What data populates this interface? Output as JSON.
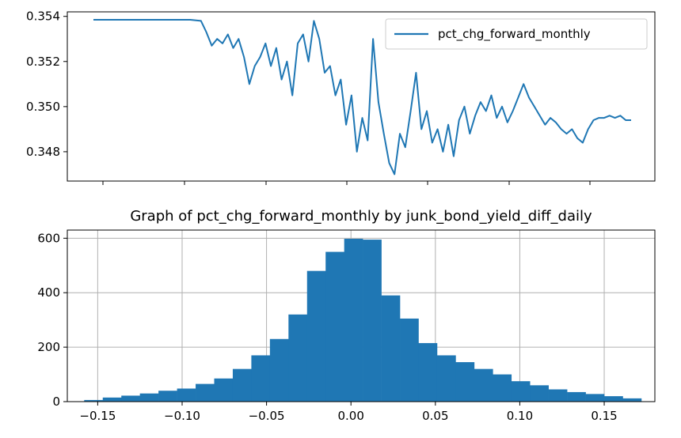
{
  "chart_data": [
    {
      "type": "line",
      "title": "",
      "xlabel": "",
      "ylabel": "",
      "ylim": [
        0.3467,
        0.3542
      ],
      "yticks": [
        0.348,
        0.35,
        0.352,
        0.354
      ],
      "ytick_labels": [
        "0.348",
        "0.350",
        "0.352",
        "0.354"
      ],
      "xtick_labels_visible": false,
      "grid": false,
      "legend_position": "upper right",
      "series": [
        {
          "name": "pct_chg_forward_monthly",
          "color": "#1f77b4",
          "points": [
            [
              0,
              0.35385
            ],
            [
              0.1,
              0.35385
            ],
            [
              0.18,
              0.35385
            ],
            [
              0.2,
              0.3538
            ],
            [
              0.21,
              0.3533
            ],
            [
              0.22,
              0.3527
            ],
            [
              0.23,
              0.353
            ],
            [
              0.24,
              0.3528
            ],
            [
              0.25,
              0.3532
            ],
            [
              0.26,
              0.3526
            ],
            [
              0.27,
              0.353
            ],
            [
              0.28,
              0.3522
            ],
            [
              0.29,
              0.351
            ],
            [
              0.3,
              0.3518
            ],
            [
              0.31,
              0.3522
            ],
            [
              0.32,
              0.3528
            ],
            [
              0.33,
              0.3518
            ],
            [
              0.34,
              0.3526
            ],
            [
              0.35,
              0.3512
            ],
            [
              0.36,
              0.352
            ],
            [
              0.37,
              0.3505
            ],
            [
              0.38,
              0.3528
            ],
            [
              0.39,
              0.3532
            ],
            [
              0.4,
              0.352
            ],
            [
              0.41,
              0.3538
            ],
            [
              0.42,
              0.353
            ],
            [
              0.43,
              0.3515
            ],
            [
              0.44,
              0.3518
            ],
            [
              0.45,
              0.3505
            ],
            [
              0.46,
              0.3512
            ],
            [
              0.47,
              0.3492
            ],
            [
              0.48,
              0.3505
            ],
            [
              0.49,
              0.348
            ],
            [
              0.5,
              0.3495
            ],
            [
              0.51,
              0.3485
            ],
            [
              0.52,
              0.353
            ],
            [
              0.53,
              0.3502
            ],
            [
              0.54,
              0.3488
            ],
            [
              0.55,
              0.3475
            ],
            [
              0.56,
              0.347
            ],
            [
              0.57,
              0.3488
            ],
            [
              0.58,
              0.3482
            ],
            [
              0.59,
              0.3498
            ],
            [
              0.6,
              0.3515
            ],
            [
              0.61,
              0.349
            ],
            [
              0.62,
              0.3498
            ],
            [
              0.63,
              0.3484
            ],
            [
              0.64,
              0.349
            ],
            [
              0.65,
              0.348
            ],
            [
              0.66,
              0.3492
            ],
            [
              0.67,
              0.3478
            ],
            [
              0.68,
              0.3494
            ],
            [
              0.69,
              0.35
            ],
            [
              0.7,
              0.3488
            ],
            [
              0.71,
              0.3496
            ],
            [
              0.72,
              0.3502
            ],
            [
              0.73,
              0.3498
            ],
            [
              0.74,
              0.3505
            ],
            [
              0.75,
              0.3495
            ],
            [
              0.76,
              0.35
            ],
            [
              0.77,
              0.3493
            ],
            [
              0.78,
              0.3498
            ],
            [
              0.79,
              0.3504
            ],
            [
              0.8,
              0.351
            ],
            [
              0.81,
              0.3504
            ],
            [
              0.82,
              0.35
            ],
            [
              0.83,
              0.3496
            ],
            [
              0.84,
              0.3492
            ],
            [
              0.85,
              0.3495
            ],
            [
              0.86,
              0.3493
            ],
            [
              0.87,
              0.349
            ],
            [
              0.88,
              0.3488
            ],
            [
              0.89,
              0.349
            ],
            [
              0.9,
              0.3486
            ],
            [
              0.91,
              0.3484
            ],
            [
              0.92,
              0.349
            ],
            [
              0.93,
              0.3494
            ],
            [
              0.94,
              0.3495
            ],
            [
              0.95,
              0.3495
            ],
            [
              0.96,
              0.3496
            ],
            [
              0.97,
              0.3495
            ],
            [
              0.98,
              0.3496
            ],
            [
              0.99,
              0.3494
            ],
            [
              1.0,
              0.3494
            ]
          ]
        }
      ]
    },
    {
      "type": "bar",
      "title": "Graph of pct_chg_forward_monthly by junk_bond_yield_diff_daily",
      "xlabel": "",
      "ylabel": "",
      "xlim": [
        -0.168,
        0.18
      ],
      "ylim": [
        0,
        630
      ],
      "xticks": [
        -0.15,
        -0.1,
        -0.05,
        0.0,
        0.05,
        0.1,
        0.15
      ],
      "xtick_labels": [
        "−0.15",
        "−0.10",
        "−0.05",
        "0.00",
        "0.05",
        "0.10",
        "0.15"
      ],
      "yticks": [
        0,
        200,
        400,
        600
      ],
      "ytick_labels": [
        "0",
        "200",
        "400",
        "600"
      ],
      "grid": true,
      "bin_start": -0.158,
      "bin_width": 0.011,
      "color": "#1f77b4",
      "values": [
        6,
        15,
        22,
        30,
        40,
        48,
        65,
        85,
        120,
        170,
        230,
        320,
        480,
        550,
        598,
        595,
        390,
        305,
        215,
        170,
        145,
        120,
        100,
        75,
        60,
        45,
        35,
        28,
        20,
        12
      ]
    }
  ],
  "colors": {
    "series": "#1f77b4",
    "grid": "#b0b0b0",
    "axis": "#000000"
  }
}
